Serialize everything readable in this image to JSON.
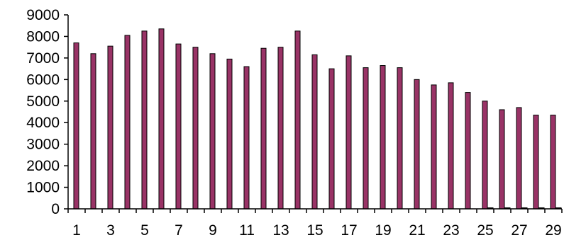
{
  "chart_data": {
    "type": "bar",
    "categories": [
      "1",
      "2",
      "3",
      "4",
      "5",
      "6",
      "7",
      "8",
      "9",
      "10",
      "11",
      "12",
      "13",
      "14",
      "15",
      "16",
      "17",
      "18",
      "19",
      "20",
      "21",
      "22",
      "23",
      "24",
      "25",
      "26",
      "27",
      "28",
      "29"
    ],
    "x_tick_labels": [
      "1",
      "3",
      "5",
      "7",
      "9",
      "11",
      "13",
      "15",
      "17",
      "19",
      "21",
      "23",
      "25",
      "27",
      "29"
    ],
    "series": [
      {
        "color": "#993366",
        "values": [
          7700,
          7200,
          7550,
          8050,
          8250,
          8350,
          7650,
          7500,
          7200,
          6950,
          6600,
          7450,
          7500,
          8250,
          7150,
          6500,
          7100,
          6550,
          6650,
          6550,
          6000,
          5750,
          5850,
          5400,
          5000,
          4600,
          4700,
          4350,
          4350
        ]
      },
      {
        "color": "#000000",
        "values": [
          0,
          0,
          0,
          0,
          0,
          0,
          0,
          0,
          0,
          0,
          0,
          0,
          0,
          0,
          0,
          0,
          0,
          0,
          0,
          0,
          0,
          0,
          0,
          0,
          50,
          50,
          50,
          50,
          50
        ]
      }
    ],
    "ylim": [
      0,
      9000
    ],
    "y_ticks": [
      "0",
      "1000",
      "2000",
      "3000",
      "4000",
      "5000",
      "6000",
      "7000",
      "8000",
      "9000"
    ],
    "title": "",
    "xlabel": "",
    "ylabel": "",
    "grid": false,
    "legend": "none"
  }
}
